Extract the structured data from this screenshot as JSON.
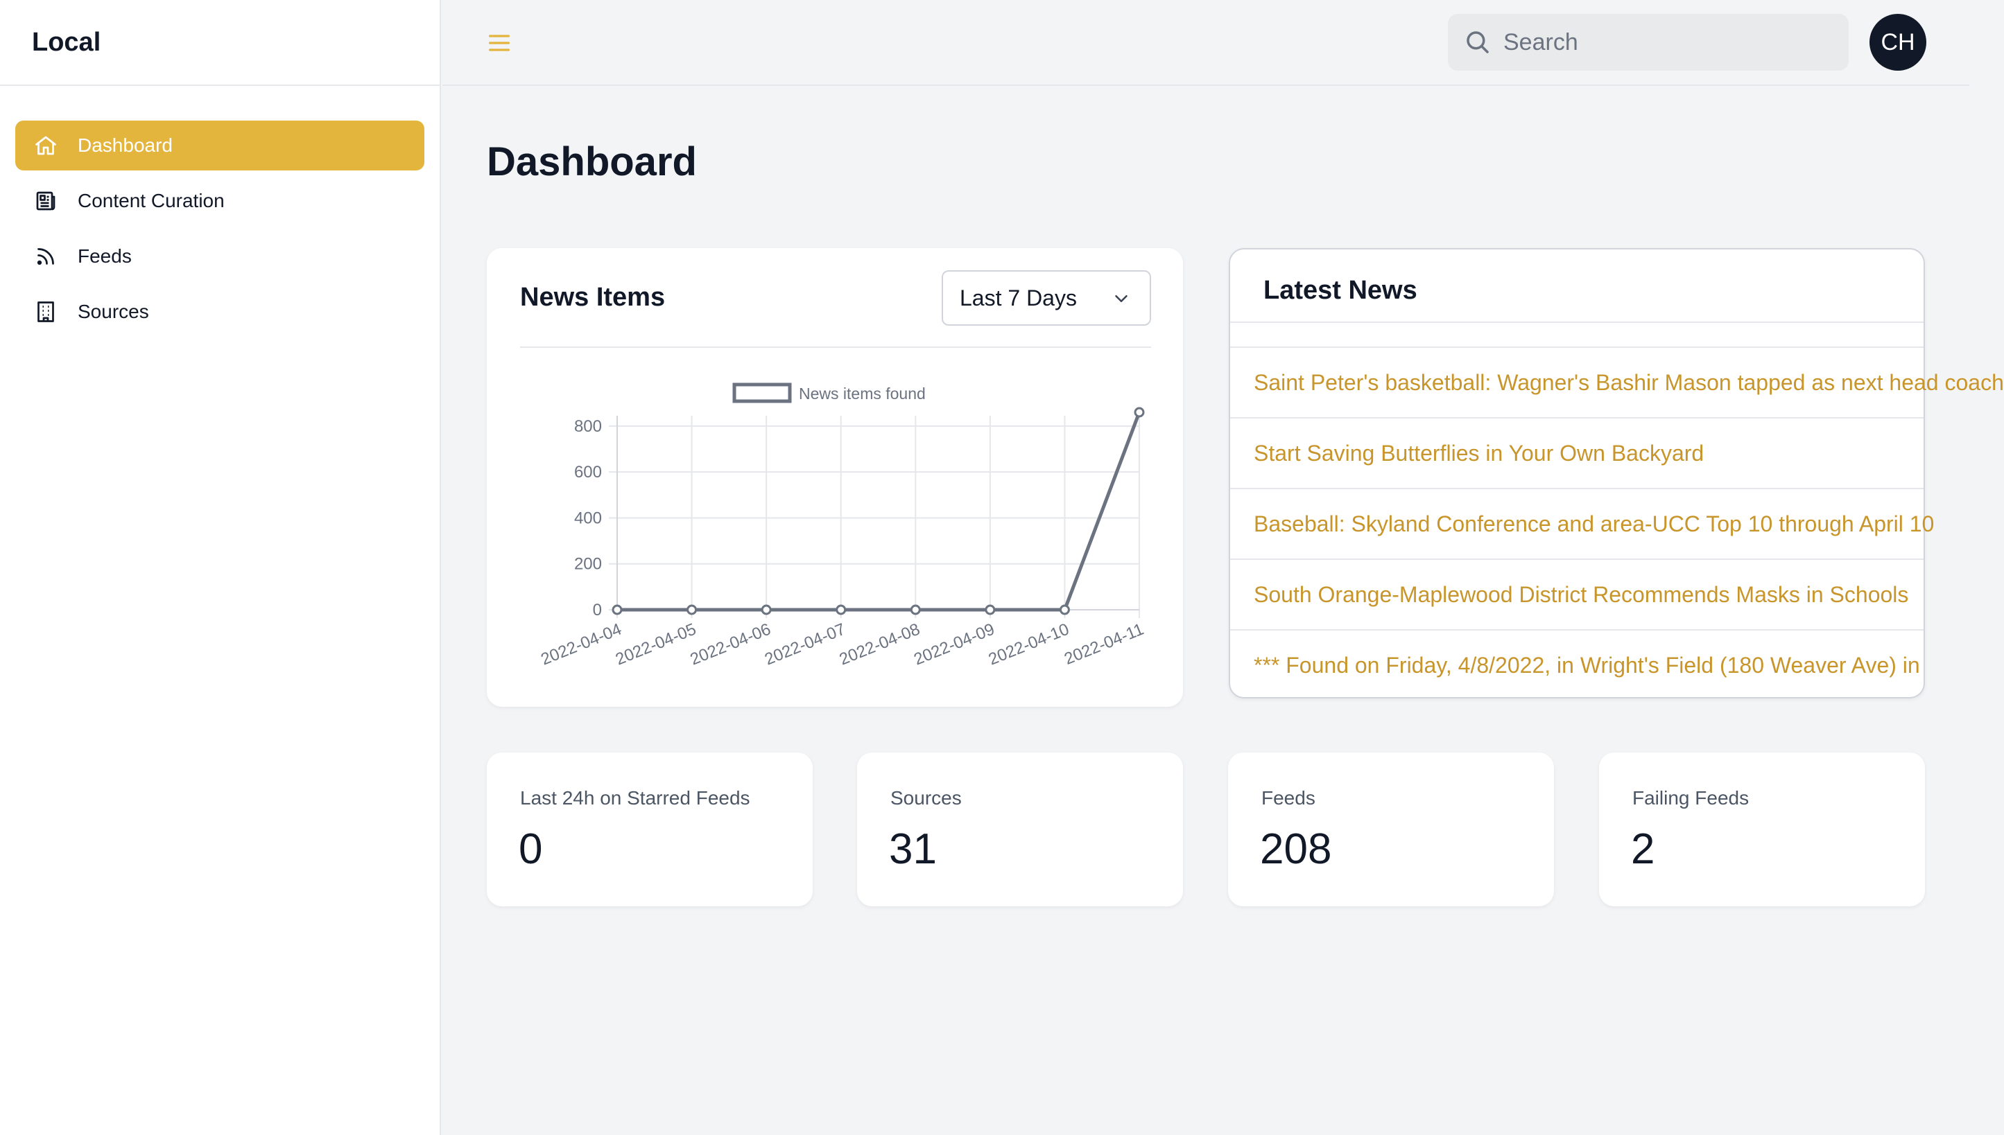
{
  "app": {
    "brand": "Local"
  },
  "sidebar": {
    "items": [
      {
        "label": "Dashboard",
        "icon": "home-icon",
        "active": true
      },
      {
        "label": "Content Curation",
        "icon": "newspaper-icon",
        "active": false
      },
      {
        "label": "Feeds",
        "icon": "rss-icon",
        "active": false
      },
      {
        "label": "Sources",
        "icon": "building-icon",
        "active": false
      }
    ]
  },
  "header": {
    "search_placeholder": "Search",
    "avatar_initials": "CH"
  },
  "page": {
    "title": "Dashboard"
  },
  "news_items": {
    "title": "News Items",
    "range_selected": "Last 7 Days"
  },
  "chart_data": {
    "type": "line",
    "title": "",
    "xlabel": "",
    "ylabel": "",
    "legend": "top",
    "grid": true,
    "x": [
      "2022-04-04",
      "2022-04-05",
      "2022-04-06",
      "2022-04-07",
      "2022-04-08",
      "2022-04-09",
      "2022-04-10",
      "2022-04-11"
    ],
    "series": [
      {
        "name": "News items found",
        "values": [
          0,
          0,
          0,
          0,
          0,
          0,
          0,
          860
        ]
      }
    ],
    "ylim": [
      0,
      860
    ],
    "yticks": [
      0,
      200,
      400,
      600,
      800
    ],
    "color": "#6b7280"
  },
  "latest_news": {
    "title": "Latest News",
    "items": [
      "Saint Peter's basketball: Wagner's Bashir Mason tapped as next head coach",
      "Start Saving Butterflies in Your Own Backyard",
      "Baseball: Skyland Conference and area-UCC Top 10 through April 10",
      "South Orange-Maplewood District Recommends Masks in Schools",
      "*** Found on Friday, 4/8/2022, in Wright's Field (180 Weaver Ave) in"
    ]
  },
  "stats": [
    {
      "label": "Last 24h on Starred Feeds",
      "value": "0"
    },
    {
      "label": "Sources",
      "value": "31"
    },
    {
      "label": "Feeds",
      "value": "208"
    },
    {
      "label": "Failing Feeds",
      "value": "2"
    }
  ],
  "colors": {
    "accent": "#e3b53d",
    "link": "#c8952b",
    "dark": "#111827"
  }
}
